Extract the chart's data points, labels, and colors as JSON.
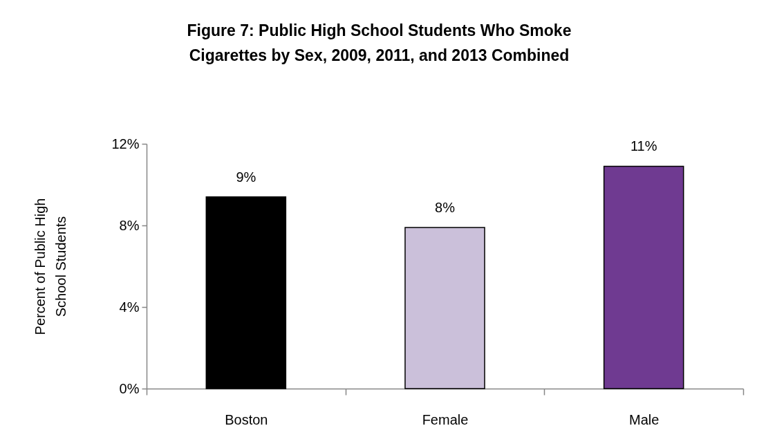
{
  "chart_data": {
    "type": "bar",
    "title": "Figure 7: Public High School Students Who Smoke Cigarettes by Sex, 2009, 2011, and 2013 Combined",
    "ylabel": "Percent of Public High School Students",
    "categories": [
      "Boston",
      "Female",
      "Male"
    ],
    "values": [
      9.4,
      7.9,
      10.9
    ],
    "colors": [
      "#000000",
      "#cbc0da",
      "#6f3a91"
    ],
    "value_labels": [
      "9%",
      "8%",
      "11%"
    ],
    "ylim": [
      0,
      12
    ],
    "yticks": [
      {
        "value": 0,
        "label": "0%"
      },
      {
        "value": 4,
        "label": "4%"
      },
      {
        "value": 8,
        "label": "8%"
      },
      {
        "value": 12,
        "label": "12%"
      }
    ]
  }
}
